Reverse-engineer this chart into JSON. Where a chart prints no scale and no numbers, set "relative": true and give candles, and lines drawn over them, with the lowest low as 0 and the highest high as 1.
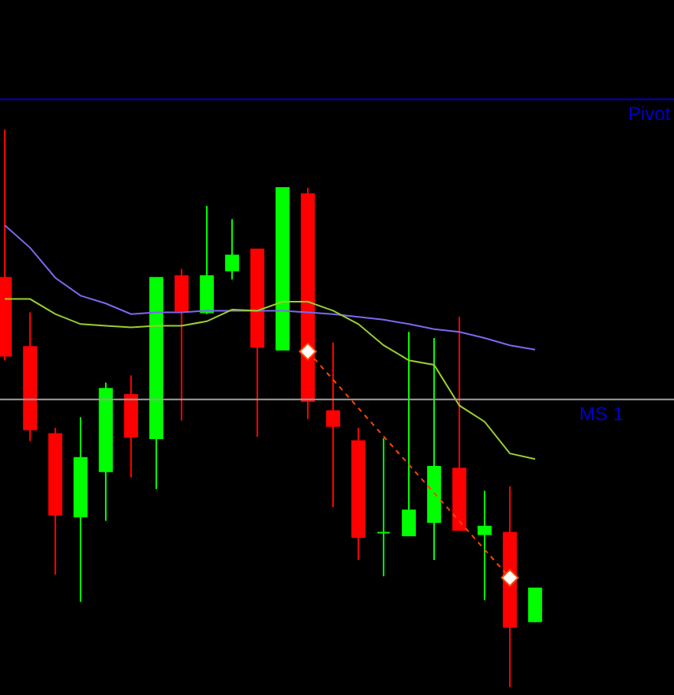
{
  "chart_data": {
    "type": "candlestick",
    "relative": true,
    "categories": [
      null,
      null,
      null,
      null,
      null,
      null,
      null,
      null,
      null,
      null,
      null,
      null,
      null,
      null,
      null,
      null,
      null,
      null,
      null,
      null,
      null,
      null
    ],
    "ohlc": [
      [
        0.734,
        1,
        0.586,
        0.594
      ],
      [
        0.61,
        0.672,
        0.441,
        0.462
      ],
      [
        0.454,
        0.465,
        0.202,
        0.309
      ],
      [
        0.306,
        0.484,
        0.153,
        0.411
      ],
      [
        0.387,
        0.546,
        0.298,
        0.535
      ],
      [
        0.524,
        0.559,
        0.376,
        0.449
      ],
      [
        0.446,
        0.734,
        0.355,
        0.734
      ],
      [
        0.737,
        0.75,
        0.478,
        0.675
      ],
      [
        0.672,
        0.863,
        0.669,
        0.737
      ],
      [
        0.747,
        0.839,
        0.731,
        0.774
      ],
      [
        0.785,
        0.785,
        0.449,
        0.61
      ],
      [
        0.605,
        0.895,
        0.605,
        0.895
      ],
      [
        0.884,
        0.895,
        0.481,
        0.513
      ],
      [
        0.495,
        0.618,
        0.323,
        0.468
      ],
      [
        0.441,
        0.465,
        0.228,
        0.269
      ],
      [
        0.277,
        0.446,
        0.199,
        0.277
      ],
      [
        0.272,
        0.637,
        0.272,
        0.317
      ],
      [
        0.296,
        0.626,
        0.228,
        0.395
      ],
      [
        0.392,
        0.664,
        0.282,
        0.282
      ],
      [
        0.274,
        0.352,
        0.156,
        0.288
      ],
      [
        0.277,
        0.36,
        0,
        0.108
      ],
      [
        0.118,
        0.177,
        0.116,
        0.177
      ]
    ],
    "series": [
      {
        "type": "line",
        "color": "#7b68ee",
        "values": [
          0.828,
          0.788,
          0.734,
          0.702,
          0.688,
          0.669,
          0.672,
          0.672,
          0.675,
          0.675,
          0.675,
          0.675,
          0.672,
          0.669,
          0.664,
          0.659,
          0.651,
          0.642,
          0.637,
          0.626,
          0.613,
          0.605
        ]
      },
      {
        "type": "line",
        "color": "#9acd32",
        "values": [
          0.696,
          0.696,
          0.669,
          0.651,
          0.648,
          0.645,
          0.648,
          0.648,
          0.656,
          0.677,
          0.675,
          0.691,
          0.691,
          0.675,
          0.651,
          0.613,
          0.586,
          0.578,
          0.505,
          0.476,
          0.419,
          0.409
        ]
      },
      {
        "type": "line",
        "color": "#ff4500",
        "line_style": "dotted",
        "marker": "diamond",
        "values": [
          null,
          null,
          null,
          null,
          null,
          null,
          null,
          null,
          null,
          null,
          null,
          null,
          0.602,
          null,
          null,
          null,
          null,
          null,
          null,
          null,
          0.196,
          null
        ]
      }
    ],
    "ref_lines": [
      {
        "axis": "y",
        "value": 1.054,
        "label": "Pivot",
        "color": "#0000cd"
      },
      {
        "axis": "y",
        "value": 0.516,
        "label": "MS 1",
        "color": "#a0a0a0"
      }
    ]
  }
}
